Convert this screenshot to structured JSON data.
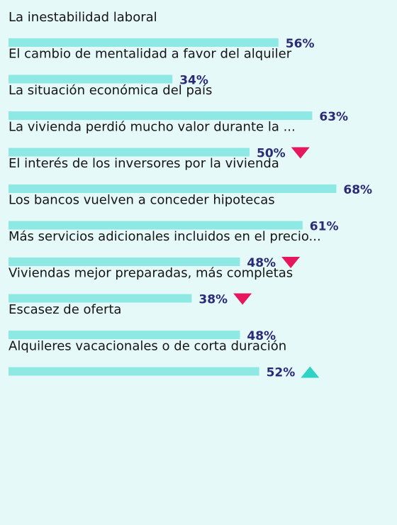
{
  "chart_data": {
    "type": "bar",
    "orientation": "horizontal",
    "categories": [
      "La inestabilidad laboral",
      "El cambio de mentalidad a favor del alquiler",
      "La situación económica del país",
      "La vivienda perdió mucho valor durante la ...",
      "El interés de los inversores por la vivienda",
      "Los bancos vuelven a conceder hipotecas",
      "Más servicios adicionales incluidos en el precio...",
      "Viviendas mejor preparadas, más completas",
      "Escasez de oferta",
      "Alquileres vacacionales o de corta duración"
    ],
    "values": [
      56,
      34,
      63,
      50,
      68,
      61,
      48,
      38,
      48,
      52
    ],
    "value_labels": [
      "56%",
      "34%",
      "63%",
      "50%",
      "68%",
      "61%",
      "48%",
      "38%",
      "48%",
      "52%"
    ],
    "trends": [
      null,
      null,
      null,
      "down",
      null,
      null,
      "down",
      "down",
      null,
      "up"
    ],
    "color": "#8ee8e4",
    "up_color": "#2ed3c6",
    "down_color": "#e6175c",
    "xlim": [
      0,
      70
    ]
  }
}
